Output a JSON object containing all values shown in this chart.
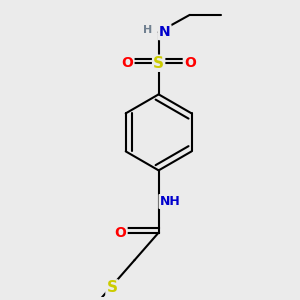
{
  "bg_color": "#ebebeb",
  "bond_color": "#000000",
  "bond_lw": 1.5,
  "dbo": 0.035,
  "atom_colors": {
    "N": "#0000cc",
    "O": "#ff0000",
    "S": "#cccc00",
    "H": "#708090"
  },
  "fs": 9,
  "figsize": [
    3.0,
    3.0
  ],
  "dpi": 100
}
